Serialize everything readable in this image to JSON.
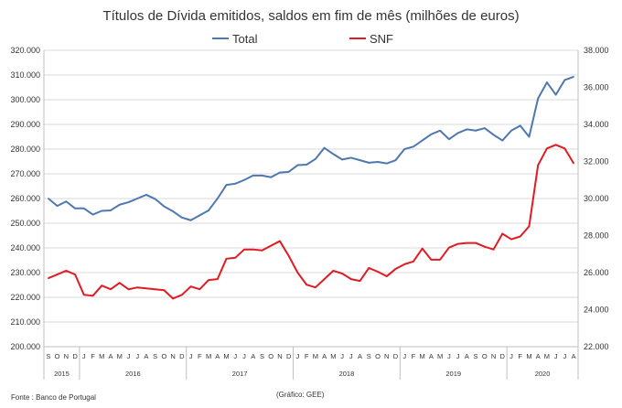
{
  "chart_data": {
    "type": "line",
    "title": "Títulos de Dívida emitidos, saldos em fim de mês  (milhões de euros)",
    "source": "Fonte : Banco de Portugal",
    "credit": "(Gráfico: GEE)",
    "legend": "top-center",
    "grid": true,
    "x_months": [
      "S",
      "O",
      "N",
      "D",
      "J",
      "F",
      "M",
      "A",
      "M",
      "J",
      "J",
      "A",
      "S",
      "O",
      "N",
      "D",
      "J",
      "F",
      "M",
      "A",
      "M",
      "J",
      "J",
      "A",
      "S",
      "O",
      "N",
      "D",
      "J",
      "F",
      "M",
      "A",
      "M",
      "J",
      "J",
      "A",
      "S",
      "O",
      "N",
      "D",
      "J",
      "F",
      "M",
      "A",
      "M",
      "J",
      "J",
      "A",
      "S",
      "O",
      "N",
      "D",
      "J",
      "F",
      "M",
      "A",
      "M",
      "J",
      "J",
      "A"
    ],
    "x_years": [
      {
        "label": "2015",
        "start": 0,
        "count": 4
      },
      {
        "label": "2016",
        "start": 4,
        "count": 12
      },
      {
        "label": "2017",
        "start": 16,
        "count": 12
      },
      {
        "label": "2018",
        "start": 28,
        "count": 12
      },
      {
        "label": "2019",
        "start": 40,
        "count": 12
      },
      {
        "label": "2020",
        "start": 52,
        "count": 8
      }
    ],
    "y_left": {
      "min": 200000,
      "max": 320000,
      "step": 10000,
      "ticks": [
        "200.000",
        "210.000",
        "220.000",
        "230.000",
        "240.000",
        "250.000",
        "260.000",
        "270.000",
        "280.000",
        "290.000",
        "300.000",
        "310.000",
        "320.000"
      ]
    },
    "y_right": {
      "min": 22000,
      "max": 38000,
      "step": 2000,
      "ticks": [
        "22.000",
        "24.000",
        "26.000",
        "28.000",
        "30.000",
        "32.000",
        "34.000",
        "36.000",
        "38.000"
      ]
    },
    "series": [
      {
        "name": "Total",
        "axis": "left",
        "color": "#4f77b0",
        "values": [
          260000,
          257000,
          258800,
          256000,
          256000,
          253500,
          255000,
          255200,
          257500,
          258500,
          260000,
          261500,
          259800,
          256800,
          254800,
          252300,
          251200,
          253200,
          255200,
          260000,
          265500,
          266000,
          267500,
          269300,
          269300,
          268600,
          270500,
          270800,
          273500,
          273700,
          276000,
          280500,
          278000,
          275800,
          276500,
          275500,
          274500,
          274800,
          274200,
          275500,
          280000,
          281000,
          283500,
          286000,
          287500,
          284000,
          286500,
          288000,
          287500,
          288500,
          285800,
          283500,
          287500,
          289500,
          285000,
          300500,
          307000,
          302000,
          308000,
          309300
        ]
      },
      {
        "name": "SNF",
        "axis": "right",
        "color": "#e01b22",
        "values": [
          25700,
          25900,
          26100,
          25900,
          24800,
          24750,
          25300,
          25100,
          25450,
          25100,
          25200,
          25150,
          25100,
          25050,
          24600,
          24800,
          25250,
          25100,
          25600,
          25650,
          26750,
          26800,
          27250,
          27250,
          27200,
          27450,
          27700,
          26900,
          26000,
          25350,
          25200,
          25650,
          26100,
          25950,
          25650,
          25550,
          26250,
          26050,
          25800,
          26200,
          26450,
          26600,
          27300,
          26700,
          26700,
          27350,
          27550,
          27600,
          27600,
          27400,
          27250,
          28100,
          27800,
          27950,
          28500,
          31800,
          32700,
          32900,
          32700,
          31900
        ]
      }
    ]
  }
}
